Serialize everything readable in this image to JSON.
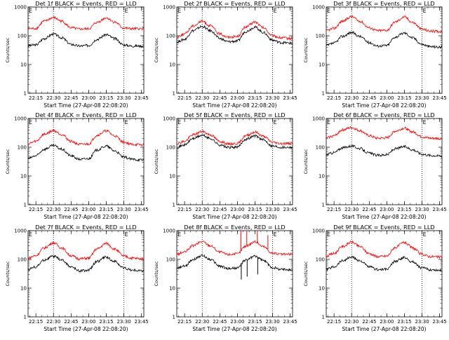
{
  "colors": {
    "events": "#000000",
    "lld": "#ff0000",
    "axes": "#000000",
    "background": "#ffffff"
  },
  "chart_data": [
    {
      "type": "line",
      "title": "Det 1f BLACK = Events, RED = LLD",
      "xlabel": "Start Time (27-Apr-08 22:08:20)",
      "ylabel": "Counts/sec",
      "x_ticks": [
        "22:15",
        "22:30",
        "22:45",
        "23:00",
        "23:15",
        "23:30",
        "23:45"
      ],
      "y_ticks": [
        "1",
        "10",
        "100",
        "1000"
      ],
      "yscale": "log",
      "ylim": [
        1,
        1000
      ],
      "xlim": [
        "22:08:20",
        "23:47:00"
      ],
      "markers": [
        "22:30",
        "23:30"
      ],
      "marker_labels": [
        "E",
        "E"
      ],
      "grid": false,
      "series": [
        {
          "color": "black",
          "x": [
            "22:08",
            "22:15",
            "22:22",
            "22:30",
            "22:37",
            "22:45",
            "22:52",
            "23:00",
            "23:07",
            "23:15",
            "23:22",
            "23:30",
            "23:37",
            "23:46"
          ],
          "values": [
            45,
            48,
            80,
            115,
            85,
            50,
            44,
            46,
            75,
            110,
            80,
            48,
            44,
            44
          ]
        },
        {
          "color": "red",
          "x": [
            "22:08",
            "22:15",
            "22:22",
            "22:30",
            "22:37",
            "22:45",
            "22:52",
            "23:00",
            "23:07",
            "23:15",
            "23:22",
            "23:30",
            "23:37",
            "23:46"
          ],
          "values": [
            175,
            180,
            320,
            430,
            320,
            190,
            170,
            175,
            290,
            420,
            300,
            185,
            175,
            175
          ]
        }
      ]
    },
    {
      "type": "line",
      "title": "Det 2f BLACK = Events, RED = LLD",
      "xlabel": "Start Time (27-Apr-08 22:08:20)",
      "ylabel": "Counts/sec",
      "x_ticks": [
        "22:15",
        "22:30",
        "22:45",
        "23:00",
        "23:15",
        "23:30",
        "23:45"
      ],
      "y_ticks": [
        "1",
        "10",
        "100",
        "1000"
      ],
      "yscale": "log",
      "ylim": [
        1,
        1000
      ],
      "xlim": [
        "22:08:20",
        "23:47:00"
      ],
      "markers": [
        "22:30",
        "23:30"
      ],
      "marker_labels": [
        "E",
        "E"
      ],
      "grid": false,
      "series": [
        {
          "color": "black",
          "x": [
            "22:08",
            "22:15",
            "22:22",
            "22:30",
            "22:37",
            "22:45",
            "22:52",
            "23:00",
            "23:07",
            "23:15",
            "23:22",
            "23:30",
            "23:37",
            "23:46"
          ],
          "values": [
            60,
            75,
            150,
            210,
            150,
            80,
            62,
            65,
            140,
            200,
            130,
            70,
            58,
            55
          ]
        },
        {
          "color": "red",
          "x": [
            "22:08",
            "22:15",
            "22:22",
            "22:30",
            "22:37",
            "22:45",
            "22:52",
            "23:00",
            "23:07",
            "23:15",
            "23:22",
            "23:30",
            "23:37",
            "23:46"
          ],
          "values": [
            90,
            115,
            220,
            320,
            220,
            115,
            90,
            95,
            200,
            300,
            190,
            100,
            85,
            80
          ]
        }
      ]
    },
    {
      "type": "line",
      "title": "Det 3f BLACK = Events, RED = LLD",
      "xlabel": "Start Time (27-Apr-08 22:08:20)",
      "ylabel": "Counts/sec",
      "x_ticks": [
        "22:15",
        "22:30",
        "22:45",
        "23:00",
        "23:15",
        "23:30",
        "23:45"
      ],
      "y_ticks": [
        "1",
        "10",
        "100",
        "1000"
      ],
      "yscale": "log",
      "ylim": [
        1,
        1000
      ],
      "xlim": [
        "22:08:20",
        "23:47:00"
      ],
      "markers": [
        "22:30",
        "23:30"
      ],
      "marker_labels": [
        "E",
        "E"
      ],
      "grid": false,
      "series": [
        {
          "color": "black",
          "x": [
            "22:08",
            "22:15",
            "22:22",
            "22:30",
            "22:37",
            "22:45",
            "22:52",
            "23:00",
            "23:07",
            "23:15",
            "23:22",
            "23:30",
            "23:37",
            "23:46"
          ],
          "values": [
            45,
            55,
            95,
            130,
            95,
            58,
            44,
            46,
            90,
            125,
            85,
            50,
            42,
            40
          ]
        },
        {
          "color": "red",
          "x": [
            "22:08",
            "22:15",
            "22:22",
            "22:30",
            "22:37",
            "22:45",
            "22:52",
            "23:00",
            "23:07",
            "23:15",
            "23:22",
            "23:30",
            "23:37",
            "23:46"
          ],
          "values": [
            150,
            180,
            320,
            460,
            320,
            190,
            150,
            155,
            300,
            450,
            290,
            170,
            145,
            140
          ]
        }
      ]
    },
    {
      "type": "line",
      "title": "Det 4f BLACK = Events, RED = LLD",
      "xlabel": "Start Time (27-Apr-08 22:08:20)",
      "ylabel": "Counts/sec",
      "x_ticks": [
        "22:15",
        "22:30",
        "22:45",
        "23:00",
        "23:15",
        "23:30",
        "23:45"
      ],
      "y_ticks": [
        "1",
        "10",
        "100",
        "1000"
      ],
      "yscale": "log",
      "ylim": [
        1,
        1000
      ],
      "xlim": [
        "22:08:20",
        "23:47:00"
      ],
      "markers": [
        "22:30",
        "23:30"
      ],
      "marker_labels": [
        "E",
        "E"
      ],
      "grid": false,
      "series": [
        {
          "color": "black",
          "x": [
            "22:08",
            "22:15",
            "22:22",
            "22:30",
            "22:37",
            "22:45",
            "22:52",
            "23:00",
            "23:07",
            "23:15",
            "23:22",
            "23:30",
            "23:37",
            "23:46"
          ],
          "values": [
            40,
            50,
            85,
            115,
            85,
            50,
            38,
            40,
            80,
            110,
            75,
            45,
            38,
            36
          ]
        },
        {
          "color": "red",
          "x": [
            "22:08",
            "22:15",
            "22:22",
            "22:30",
            "22:37",
            "22:45",
            "22:52",
            "23:00",
            "23:07",
            "23:15",
            "23:22",
            "23:30",
            "23:37",
            "23:46"
          ],
          "values": [
            130,
            160,
            280,
            380,
            280,
            160,
            125,
            130,
            260,
            370,
            250,
            150,
            125,
            120
          ]
        }
      ]
    },
    {
      "type": "line",
      "title": "Det 5f BLACK = Events, RED = LLD",
      "xlabel": "Start Time (27-Apr-08 22:08:20)",
      "ylabel": "Counts/sec",
      "x_ticks": [
        "22:15",
        "22:30",
        "22:45",
        "23:00",
        "23:15",
        "23:30",
        "23:45"
      ],
      "y_ticks": [
        "1",
        "10",
        "100",
        "1000"
      ],
      "yscale": "log",
      "ylim": [
        1,
        1000
      ],
      "xlim": [
        "22:08:20",
        "23:47:00"
      ],
      "markers": [
        "22:30",
        "23:30"
      ],
      "marker_labels": [
        "E",
        "E"
      ],
      "grid": false,
      "series": [
        {
          "color": "black",
          "x": [
            "22:08",
            "22:15",
            "22:22",
            "22:30",
            "22:37",
            "22:45",
            "22:52",
            "23:00",
            "23:07",
            "23:15",
            "23:22",
            "23:30",
            "23:37",
            "23:46"
          ],
          "values": [
            100,
            120,
            200,
            260,
            200,
            120,
            98,
            100,
            190,
            250,
            180,
            110,
            100,
            100
          ]
        },
        {
          "color": "red",
          "x": [
            "22:08",
            "22:15",
            "22:22",
            "22:30",
            "22:37",
            "22:45",
            "22:52",
            "23:00",
            "23:07",
            "23:15",
            "23:22",
            "23:30",
            "23:37",
            "23:46"
          ],
          "values": [
            135,
            160,
            270,
            350,
            270,
            160,
            130,
            135,
            250,
            340,
            240,
            150,
            135,
            135
          ]
        }
      ]
    },
    {
      "type": "line",
      "title": "Det 6f BLACK = Events, RED = LLD",
      "xlabel": "Start Time (27-Apr-08 22:08:20)",
      "ylabel": "Counts/sec",
      "x_ticks": [
        "22:15",
        "22:30",
        "22:45",
        "23:00",
        "23:15",
        "23:30",
        "23:45"
      ],
      "y_ticks": [
        "1",
        "10",
        "100",
        "1000"
      ],
      "yscale": "log",
      "ylim": [
        1,
        1000
      ],
      "xlim": [
        "22:08:20",
        "23:47:00"
      ],
      "markers": [
        "22:30",
        "23:30"
      ],
      "marker_labels": [
        "E",
        "E"
      ],
      "grid": false,
      "series": [
        {
          "color": "black",
          "x": [
            "22:08",
            "22:15",
            "22:22",
            "22:30",
            "22:37",
            "22:45",
            "22:52",
            "23:00",
            "23:07",
            "23:15",
            "23:22",
            "23:30",
            "23:37",
            "23:46"
          ],
          "values": [
            55,
            65,
            95,
            110,
            90,
            62,
            52,
            55,
            88,
            105,
            82,
            58,
            52,
            50
          ]
        },
        {
          "color": "red",
          "x": [
            "22:08",
            "22:15",
            "22:22",
            "22:30",
            "22:37",
            "22:45",
            "22:52",
            "23:00",
            "23:07",
            "23:15",
            "23:22",
            "23:30",
            "23:37",
            "23:46"
          ],
          "values": [
            210,
            250,
            400,
            480,
            380,
            250,
            205,
            210,
            360,
            460,
            340,
            230,
            205,
            200
          ]
        }
      ]
    },
    {
      "type": "line",
      "title": "Det 7f BLACK = Events, RED = LLD",
      "xlabel": "Start Time (27-Apr-08 22:08:20)",
      "ylabel": "Counts/sec",
      "x_ticks": [
        "22:15",
        "22:30",
        "22:45",
        "23:00",
        "23:15",
        "23:30",
        "23:45"
      ],
      "y_ticks": [
        "1",
        "10",
        "100",
        "1000"
      ],
      "yscale": "log",
      "ylim": [
        1,
        1000
      ],
      "xlim": [
        "22:08:20",
        "23:47:00"
      ],
      "markers": [
        "22:30",
        "23:30"
      ],
      "marker_labels": [
        "E",
        "E"
      ],
      "grid": false,
      "series": [
        {
          "color": "black",
          "x": [
            "22:08",
            "22:15",
            "22:22",
            "22:30",
            "22:37",
            "22:45",
            "22:52",
            "23:00",
            "23:07",
            "23:15",
            "23:22",
            "23:30",
            "23:37",
            "23:46"
          ],
          "values": [
            45,
            55,
            95,
            130,
            95,
            55,
            40,
            42,
            85,
            120,
            85,
            50,
            42,
            40
          ]
        },
        {
          "color": "red",
          "x": [
            "22:08",
            "22:15",
            "22:22",
            "22:30",
            "22:37",
            "22:45",
            "22:52",
            "23:00",
            "23:07",
            "23:15",
            "23:22",
            "23:30",
            "23:37",
            "23:46"
          ],
          "values": [
            110,
            135,
            250,
            380,
            250,
            135,
            105,
            110,
            230,
            360,
            230,
            130,
            110,
            105
          ]
        }
      ]
    },
    {
      "type": "line",
      "title": "Det 8f BLACK = Events, RED = LLD",
      "xlabel": "Start Time (27-Apr-08 22:08:20)",
      "ylabel": "Counts/sec",
      "x_ticks": [
        "22:15",
        "22:30",
        "22:45",
        "23:00",
        "23:15",
        "23:30",
        "23:45"
      ],
      "y_ticks": [
        "1",
        "10",
        "100",
        "1000"
      ],
      "yscale": "log",
      "ylim": [
        1,
        1000
      ],
      "xlim": [
        "22:08:20",
        "23:47:00"
      ],
      "markers": [
        "22:30",
        "23:30"
      ],
      "marker_labels": [
        "E",
        "E"
      ],
      "grid": false,
      "series": [
        {
          "color": "black",
          "x": [
            "22:08",
            "22:15",
            "22:22",
            "22:30",
            "22:37",
            "22:45",
            "22:52",
            "23:00",
            "23:07",
            "23:15",
            "23:22",
            "23:30",
            "23:37",
            "23:46"
          ],
          "values": [
            48,
            58,
            100,
            135,
            100,
            58,
            48,
            50,
            95,
            130,
            92,
            52,
            45,
            44
          ]
        },
        {
          "color": "red",
          "x": [
            "22:08",
            "22:15",
            "22:22",
            "22:30",
            "22:37",
            "22:45",
            "22:52",
            "23:00",
            "23:07",
            "23:15",
            "23:22",
            "23:30",
            "23:37",
            "23:46"
          ],
          "values": [
            150,
            180,
            300,
            420,
            300,
            180,
            150,
            155,
            290,
            410,
            280,
            165,
            150,
            150
          ]
        }
      ],
      "spikes": [
        {
          "x": "23:03",
          "red_top": 1000,
          "black_bottom": 20
        },
        {
          "x": "23:08",
          "red_top": 1000,
          "black_bottom": 25
        },
        {
          "x": "23:17",
          "red_top": 1000,
          "black_bottom": 30
        },
        {
          "x": "23:26",
          "red_top": 700,
          "black_bottom": 60
        }
      ]
    },
    {
      "type": "line",
      "title": "Det 9f BLACK = Events, RED = LLD",
      "xlabel": "Start Time (27-Apr-08 22:08:20)",
      "ylabel": "Counts/sec",
      "x_ticks": [
        "22:15",
        "22:30",
        "22:45",
        "23:00",
        "23:15",
        "23:30",
        "23:45"
      ],
      "y_ticks": [
        "1",
        "10",
        "100",
        "1000"
      ],
      "yscale": "log",
      "ylim": [
        1,
        1000
      ],
      "xlim": [
        "22:08:20",
        "23:47:00"
      ],
      "markers": [
        "22:30",
        "23:30"
      ],
      "marker_labels": [
        "E",
        "E"
      ],
      "grid": false,
      "series": [
        {
          "color": "black",
          "x": [
            "22:08",
            "22:15",
            "22:22",
            "22:30",
            "22:37",
            "22:45",
            "22:52",
            "23:00",
            "23:07",
            "23:15",
            "23:22",
            "23:30",
            "23:37",
            "23:46"
          ],
          "values": [
            45,
            55,
            90,
            120,
            90,
            55,
            44,
            45,
            85,
            115,
            82,
            50,
            44,
            42
          ]
        },
        {
          "color": "red",
          "x": [
            "22:08",
            "22:15",
            "22:22",
            "22:30",
            "22:37",
            "22:45",
            "22:52",
            "23:00",
            "23:07",
            "23:15",
            "23:22",
            "23:30",
            "23:37",
            "23:46"
          ],
          "values": [
            130,
            160,
            280,
            400,
            280,
            160,
            125,
            130,
            260,
            390,
            250,
            150,
            125,
            120
          ]
        }
      ]
    }
  ]
}
